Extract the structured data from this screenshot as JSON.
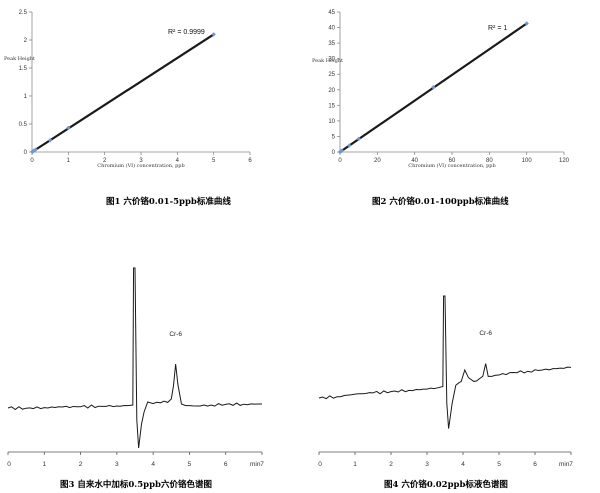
{
  "chart_data": [
    {
      "type": "scatter",
      "id": "fig1",
      "caption": "图1  六价铬0.01-5ppb标准曲线",
      "xlabel": "Chromium (VI) concentration, ppb",
      "ylabel": "Peak Height",
      "annotation": "R² = 0.9999",
      "xlim": [
        0,
        6
      ],
      "ylim": [
        0,
        2.5
      ],
      "xticks": [
        "0",
        "1",
        "2",
        "3",
        "4",
        "5",
        "6"
      ],
      "yticks": [
        "0",
        "0.5",
        "1",
        "1.5",
        "2",
        "2.5"
      ],
      "points": {
        "x": [
          0.01,
          0.02,
          0.05,
          0.1,
          0.5,
          1,
          5
        ],
        "y": [
          0.004,
          0.008,
          0.021,
          0.043,
          0.21,
          0.43,
          2.1
        ]
      },
      "trendline": {
        "x": [
          0,
          5
        ],
        "y": [
          0,
          2.1
        ]
      },
      "colors": {
        "marker": "#6f97cf",
        "line": "#1a1a1a"
      }
    },
    {
      "type": "scatter",
      "id": "fig2",
      "caption": "图2  六价铬0.01-100ppb标准曲线",
      "xlabel": "Chromium (VI) concentration, ppb",
      "ylabel": "Peak Height",
      "annotation": "R² = 1",
      "xlim": [
        0,
        120
      ],
      "ylim": [
        0,
        45
      ],
      "xticks": [
        "0",
        "20",
        "40",
        "60",
        "80",
        "100",
        "120"
      ],
      "yticks": [
        "0",
        "5",
        "10",
        "15",
        "20",
        "25",
        "30",
        "35",
        "40",
        "45"
      ],
      "points": {
        "x": [
          0.01,
          0.5,
          1,
          5,
          10,
          50,
          100
        ],
        "y": [
          0.01,
          0.21,
          0.43,
          2.1,
          4.2,
          20.8,
          41.3
        ]
      },
      "trendline": {
        "x": [
          0,
          100
        ],
        "y": [
          0,
          41.3
        ]
      },
      "colors": {
        "marker": "#6f97cf",
        "line": "#1a1a1a"
      }
    },
    {
      "type": "line",
      "id": "fig3",
      "caption": "图3  自来水中加标0.5ppb六价铬色谱图",
      "xunit": "min",
      "xlim": [
        0,
        7
      ],
      "xticks": [
        "0",
        "1",
        "2",
        "3",
        "4",
        "5",
        "6",
        "7"
      ],
      "peak_label": "Cr-6",
      "peak_time": 4.62,
      "signal": {
        "x": [
          0,
          0.5,
          1.0,
          1.5,
          2.0,
          2.5,
          3.0,
          3.3,
          3.44,
          3.46,
          3.5,
          3.55,
          3.6,
          3.68,
          3.75,
          3.85,
          4.0,
          4.2,
          4.4,
          4.5,
          4.56,
          4.62,
          4.68,
          4.78,
          4.9,
          5.2,
          5.6,
          6.0,
          6.5,
          7.0
        ],
        "y": [
          0,
          -0.1,
          0.2,
          0.5,
          0.6,
          0.9,
          1.0,
          1.2,
          1.5,
          70,
          70,
          -6,
          -20,
          -8,
          -2,
          3,
          2.2,
          2.6,
          2.8,
          4.5,
          11,
          22,
          12,
          2,
          1.2,
          1.0,
          1.5,
          1.8,
          1.9,
          2.0
        ]
      },
      "colors": {
        "line": "#1a1a1a"
      }
    },
    {
      "type": "line",
      "id": "fig4",
      "caption": "图4  六价铬0.02ppb标液色谱图",
      "xunit": "min",
      "xlim": [
        0,
        7
      ],
      "xticks": [
        "0",
        "1",
        "2",
        "3",
        "4",
        "5",
        "6",
        "7"
      ],
      "peak_label": "Cr-6",
      "peak_time": 4.63,
      "signal": {
        "x": [
          0,
          0.5,
          1.0,
          1.5,
          2.0,
          2.5,
          3.0,
          3.3,
          3.44,
          3.46,
          3.5,
          3.55,
          3.6,
          3.7,
          3.8,
          3.95,
          4.05,
          4.15,
          4.3,
          4.45,
          4.55,
          4.63,
          4.7,
          4.8,
          5.0,
          5.4,
          5.8,
          6.2,
          6.6,
          7.0
        ],
        "y": [
          0,
          0.5,
          1.5,
          2.0,
          2.5,
          3.0,
          3.5,
          4.0,
          4.5,
          40,
          40,
          -2,
          -12,
          -2,
          5,
          6.5,
          11,
          8,
          6.5,
          7.5,
          8.5,
          13.5,
          8.5,
          8.5,
          9.0,
          10,
          10.5,
          11,
          11.5,
          12
        ]
      },
      "colors": {
        "line": "#1a1a1a"
      }
    }
  ]
}
